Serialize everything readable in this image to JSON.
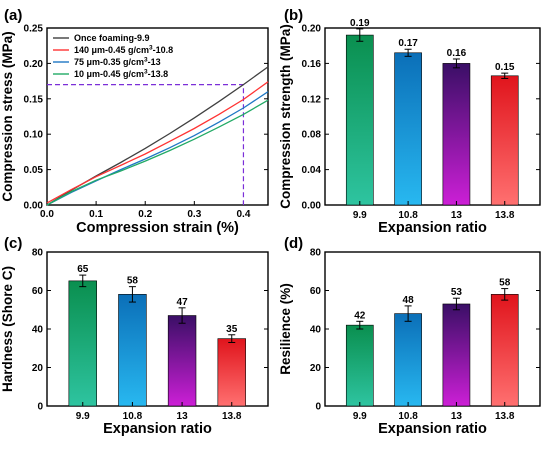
{
  "colors": {
    "bar_gradients": [
      [
        "#2ec4a0",
        "#0a8f4f"
      ],
      [
        "#28b8f0",
        "#0b6fb8"
      ],
      [
        "#cc1fd6",
        "#3a0f66"
      ],
      [
        "#ff7070",
        "#e0141c"
      ]
    ],
    "line_colors": [
      "#404040",
      "#ff3333",
      "#1f77c4",
      "#22aa66"
    ],
    "guide_color": "#7b2fd8"
  },
  "chart_data": [
    {
      "panel": "(a)",
      "type": "line",
      "xlabel": "Compression strain (%)",
      "ylabel": "Compression stress (MPa)",
      "xlim": [
        0,
        0.45
      ],
      "ylim": [
        0,
        0.25
      ],
      "xticks": [
        0.0,
        0.1,
        0.2,
        0.3,
        0.4
      ],
      "xtick_labels": [
        "0.0",
        "0.1",
        "0.2",
        "0.3",
        "0.4"
      ],
      "yticks": [
        0.0,
        0.05,
        0.1,
        0.15,
        0.2,
        0.25
      ],
      "ytick_labels": [
        "0.00",
        "0.05",
        "0.10",
        "0.15",
        "0.20",
        "0.25"
      ],
      "legend_position": "top-left",
      "series": [
        {
          "name": "Once foaming-9.9",
          "label_main": "Once foaming-9.9",
          "label_sup": "",
          "label_tail": "",
          "x": [
            0,
            0.05,
            0.1,
            0.15,
            0.2,
            0.25,
            0.3,
            0.35,
            0.4,
            0.45
          ],
          "y": [
            0,
            0.021,
            0.041,
            0.06,
            0.08,
            0.101,
            0.123,
            0.146,
            0.17,
            0.195
          ]
        },
        {
          "name": "140 μm-0.45 g/cm3-10.8",
          "label_main": "140 μm-0.45 g/cm",
          "label_sup": "3",
          "label_tail": "-10.8",
          "x": [
            0,
            0.05,
            0.1,
            0.15,
            0.2,
            0.25,
            0.3,
            0.35,
            0.4,
            0.45
          ],
          "y": [
            0.003,
            0.022,
            0.04,
            0.056,
            0.072,
            0.09,
            0.108,
            0.128,
            0.149,
            0.174
          ]
        },
        {
          "name": "75 μm-0.35 g/cm3-13",
          "label_main": "75 μm-0.35 g/cm",
          "label_sup": "3",
          "label_tail": "-13",
          "x": [
            0,
            0.05,
            0.1,
            0.15,
            0.2,
            0.25,
            0.3,
            0.35,
            0.4,
            0.45
          ],
          "y": [
            0,
            0.018,
            0.034,
            0.05,
            0.065,
            0.081,
            0.098,
            0.117,
            0.137,
            0.16
          ]
        },
        {
          "name": "10 μm-0.45 g/cm3-13.8",
          "label_main": "10 μm-0.45 g/cm",
          "label_sup": "3",
          "label_tail": "-13.8",
          "x": [
            0,
            0.05,
            0.1,
            0.15,
            0.2,
            0.25,
            0.3,
            0.35,
            0.4,
            0.45
          ],
          "y": [
            0,
            0.019,
            0.035,
            0.048,
            0.062,
            0.077,
            0.093,
            0.11,
            0.128,
            0.148
          ]
        }
      ],
      "guide": {
        "x": 0.4,
        "y": 0.17
      }
    },
    {
      "panel": "(b)",
      "type": "bar",
      "xlabel": "Expansion ratio",
      "ylabel": "Compression strength (MPa)",
      "categories": [
        "9.9",
        "10.8",
        "13",
        "13.8"
      ],
      "values": [
        0.192,
        0.172,
        0.16,
        0.146
      ],
      "errors": [
        0.007,
        0.004,
        0.005,
        0.003
      ],
      "data_labels": [
        "0.19",
        "0.17",
        "0.16",
        "0.15"
      ],
      "ylim": [
        0,
        0.2
      ],
      "yticks": [
        0,
        0.04,
        0.08,
        0.12,
        0.16,
        0.2
      ],
      "ytick_labels": [
        "0.00",
        "0.04",
        "0.08",
        "0.12",
        "0.16",
        "0.20"
      ]
    },
    {
      "panel": "(c)",
      "type": "bar",
      "xlabel": "Expansion ratio",
      "ylabel": "Hardness (Shore C)",
      "categories": [
        "9.9",
        "10.8",
        "13",
        "13.8"
      ],
      "values": [
        65,
        58,
        47,
        35
      ],
      "errors": [
        3,
        4,
        4,
        2
      ],
      "data_labels": [
        "65",
        "58",
        "47",
        "35"
      ],
      "ylim": [
        0,
        80
      ],
      "yticks": [
        0,
        20,
        40,
        60,
        80
      ],
      "ytick_labels": [
        "0",
        "20",
        "40",
        "60",
        "80"
      ]
    },
    {
      "panel": "(d)",
      "type": "bar",
      "xlabel": "Expansion ratio",
      "ylabel": "Resilience (%)",
      "categories": [
        "9.9",
        "10.8",
        "13",
        "13.8"
      ],
      "values": [
        42,
        48,
        53,
        58
      ],
      "errors": [
        2,
        4,
        3,
        3
      ],
      "data_labels": [
        "42",
        "48",
        "53",
        "58"
      ],
      "ylim": [
        0,
        80
      ],
      "yticks": [
        0,
        20,
        40,
        60,
        80
      ],
      "ytick_labels": [
        "0",
        "20",
        "40",
        "60",
        "80"
      ]
    }
  ]
}
